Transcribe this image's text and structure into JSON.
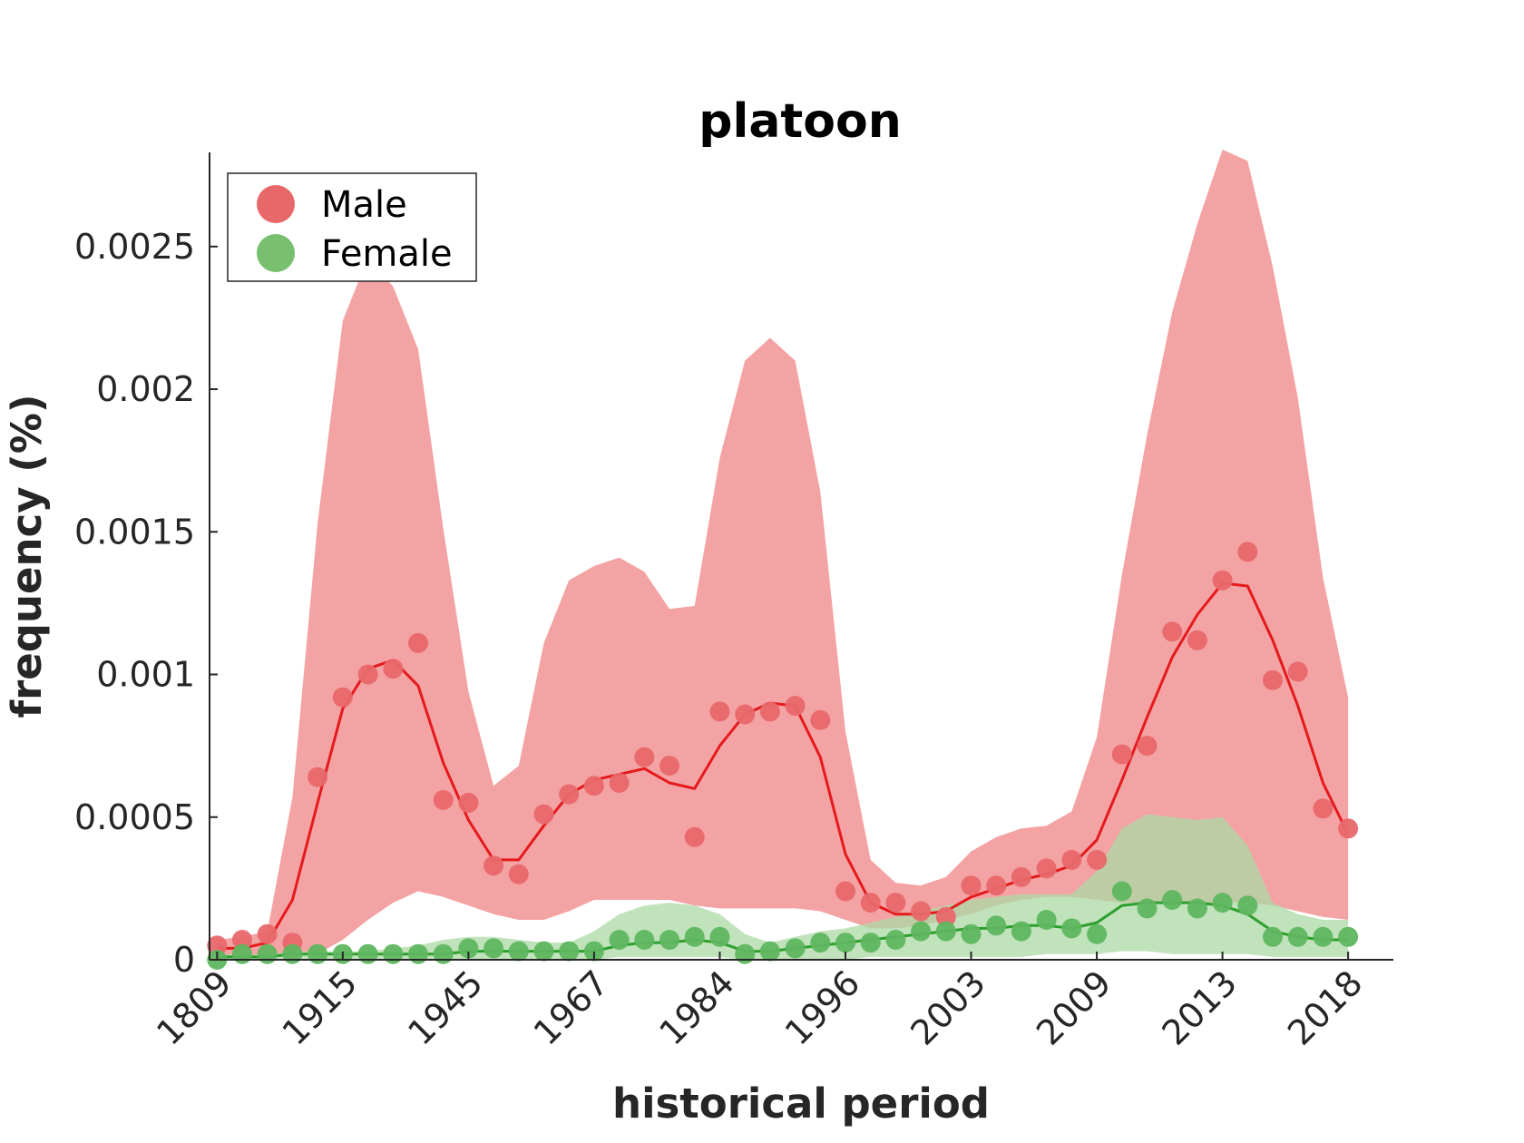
{
  "chart_data": {
    "type": "line",
    "title": "platoon",
    "xlabel": "historical period",
    "ylabel": "frequency (%)",
    "x_tick_labels": [
      "1809",
      "1915",
      "1945",
      "1967",
      "1984",
      "1996",
      "2003",
      "2009",
      "2013",
      "2018"
    ],
    "x_tick_positions": [
      0,
      5,
      10,
      15,
      20,
      25,
      30,
      35,
      40,
      45
    ],
    "y_ticks": [
      0,
      0.0005,
      0.001,
      0.0015,
      0.002,
      0.0025
    ],
    "y_tick_labels": [
      "0",
      "0.0005",
      "0.001",
      "0.0015",
      "0.002",
      "0.0025"
    ],
    "xlim": [
      -0.3,
      46.8
    ],
    "ylim": [
      0,
      0.00283
    ],
    "grid": false,
    "legend_position": "top-left",
    "series": [
      {
        "name": "Male",
        "color": "#e41a1c",
        "point_color": "#e8686a",
        "band_color": "#f4a3a4",
        "points": [
          5e-05,
          7e-05,
          9e-05,
          6e-05,
          0.00064,
          0.00092,
          0.001,
          0.00102,
          0.00111,
          0.00056,
          0.00055,
          0.00033,
          0.0003,
          0.00051,
          0.00058,
          0.00061,
          0.00062,
          0.00071,
          0.00068,
          0.00043,
          0.00087,
          0.00086,
          0.00087,
          0.00089,
          0.00084,
          0.00024,
          0.0002,
          0.0002,
          0.00017,
          0.00015,
          0.00026,
          0.00026,
          0.00029,
          0.00032,
          0.00035,
          0.00035,
          0.00072,
          0.00075,
          0.00115,
          0.00112,
          0.00133,
          0.00143,
          0.00098,
          0.00101,
          0.00053,
          0.00046
        ],
        "smooth": [
          4e-05,
          4e-05,
          6e-05,
          0.00021,
          0.00055,
          0.00088,
          0.00102,
          0.00105,
          0.00096,
          0.00069,
          0.00049,
          0.00035,
          0.00035,
          0.00047,
          0.00058,
          0.00063,
          0.00065,
          0.00067,
          0.00062,
          0.0006,
          0.00075,
          0.00086,
          0.0009,
          0.00089,
          0.00071,
          0.00037,
          0.0002,
          0.00016,
          0.00016,
          0.00017,
          0.00022,
          0.00025,
          0.00028,
          0.0003,
          0.00033,
          0.00042,
          0.00063,
          0.00085,
          0.00106,
          0.00121,
          0.00132,
          0.00131,
          0.00112,
          0.00089,
          0.00062,
          0.00044
        ],
        "band_upper": [
          7e-05,
          8e-05,
          0.0001,
          0.00057,
          0.00153,
          0.00224,
          0.00246,
          0.00236,
          0.00214,
          0.00151,
          0.00094,
          0.00061,
          0.00068,
          0.00111,
          0.00133,
          0.00138,
          0.00141,
          0.00136,
          0.00123,
          0.00124,
          0.00176,
          0.0021,
          0.00218,
          0.0021,
          0.00164,
          0.0008,
          0.00035,
          0.00027,
          0.00026,
          0.00029,
          0.00038,
          0.00043,
          0.00046,
          0.00047,
          0.00052,
          0.00078,
          0.00135,
          0.00184,
          0.00227,
          0.00258,
          0.00284,
          0.0028,
          0.00243,
          0.00197,
          0.00134,
          0.00092
        ],
        "band_lower": [
          1e-05,
          1e-05,
          2e-05,
          1e-05,
          2e-05,
          7e-05,
          0.00014,
          0.0002,
          0.00024,
          0.00022,
          0.00019,
          0.00016,
          0.00014,
          0.00014,
          0.00017,
          0.00021,
          0.00021,
          0.00021,
          0.00021,
          0.00019,
          0.00018,
          0.00018,
          0.00018,
          0.00018,
          0.00017,
          0.00014,
          0.00011,
          0.00011,
          0.00012,
          0.00014,
          0.00016,
          0.00019,
          0.00021,
          0.00022,
          0.00022,
          0.00021,
          0.0002,
          0.0002,
          0.0002,
          0.0002,
          0.0002,
          0.0002,
          0.00019,
          0.00017,
          0.00015,
          0.00014
        ]
      },
      {
        "name": "Female",
        "color": "#2ca02c",
        "point_color": "#5fb65f",
        "band_color": "#acdaa5",
        "points": [
          0.0,
          2e-05,
          2e-05,
          2e-05,
          2e-05,
          2e-05,
          2e-05,
          2e-05,
          2e-05,
          2e-05,
          4e-05,
          4e-05,
          3e-05,
          3e-05,
          3e-05,
          3e-05,
          7e-05,
          7e-05,
          7e-05,
          8e-05,
          8e-05,
          2e-05,
          3e-05,
          4e-05,
          6e-05,
          6e-05,
          6e-05,
          7e-05,
          0.0001,
          0.0001,
          9e-05,
          0.00012,
          0.0001,
          0.00014,
          0.00011,
          9e-05,
          0.00024,
          0.00018,
          0.00021,
          0.00018,
          0.0002,
          0.00019,
          8e-05,
          8e-05,
          8e-05,
          8e-05
        ],
        "smooth": [
          1e-05,
          1e-05,
          1e-05,
          2e-05,
          2e-05,
          2e-05,
          2e-05,
          2e-05,
          2e-05,
          2e-05,
          3e-05,
          3e-05,
          3e-05,
          3e-05,
          3e-05,
          3e-05,
          5e-05,
          6e-05,
          6e-05,
          7e-05,
          6e-05,
          3e-05,
          3e-05,
          4e-05,
          5e-05,
          6e-05,
          7e-05,
          8e-05,
          9e-05,
          0.0001,
          0.00011,
          0.00011,
          0.00012,
          0.00012,
          0.00011,
          0.00013,
          0.00019,
          0.0002,
          0.0002,
          0.0002,
          0.00019,
          0.00016,
          0.0001,
          8e-05,
          7e-05,
          7e-05
        ],
        "band_upper": [
          2e-05,
          2e-05,
          2e-05,
          3e-05,
          3e-05,
          3e-05,
          3e-05,
          4e-05,
          5e-05,
          7e-05,
          8e-05,
          8e-05,
          7e-05,
          6e-05,
          6e-05,
          0.0001,
          0.00016,
          0.00019,
          0.0002,
          0.00019,
          0.00016,
          9e-05,
          6e-05,
          8e-05,
          0.0001,
          0.00011,
          0.00013,
          0.00015,
          0.00017,
          0.00019,
          0.00021,
          0.00022,
          0.00023,
          0.00023,
          0.00023,
          0.00031,
          0.00046,
          0.00051,
          0.0005,
          0.00049,
          0.0005,
          0.0004,
          0.0002,
          0.00016,
          0.00014,
          0.00014
        ],
        "band_lower": [
          0.0,
          0.0,
          0.0,
          0.0,
          0.0,
          0.0,
          0.0,
          0.0,
          0.0,
          0.0,
          0.0,
          0.0,
          0.0,
          0.0,
          0.0,
          0.0,
          1e-05,
          1e-05,
          1e-05,
          1e-05,
          1e-05,
          0.0,
          0.0,
          0.0,
          0.0,
          0.0,
          1e-05,
          1e-05,
          1e-05,
          1e-05,
          1e-05,
          1e-05,
          1e-05,
          2e-05,
          2e-05,
          2e-05,
          3e-05,
          3e-05,
          2e-05,
          2e-05,
          2e-05,
          2e-05,
          1e-05,
          1e-05,
          1e-05,
          1e-05
        ]
      }
    ]
  }
}
